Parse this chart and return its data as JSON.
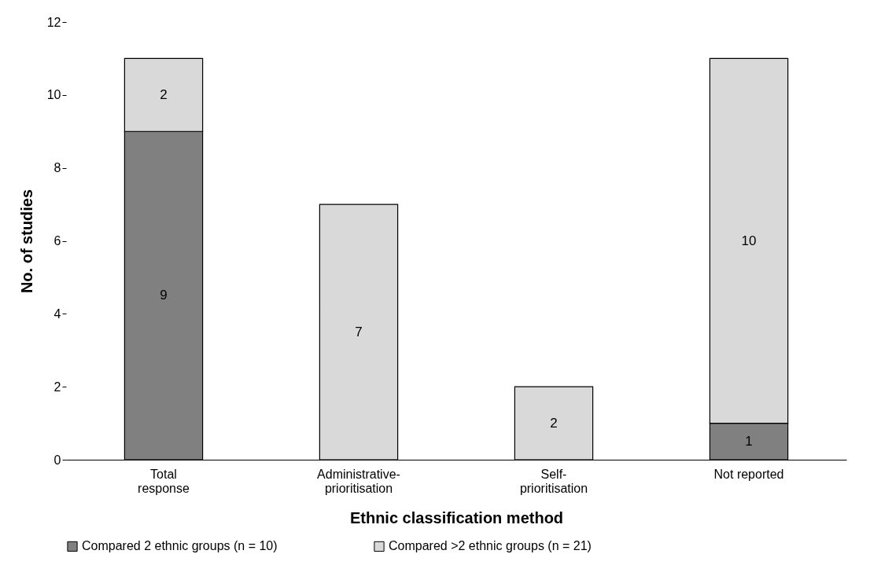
{
  "chart_data": {
    "type": "bar",
    "stacked": true,
    "xlabel": "Ethnic classification method",
    "ylabel": "No. of studies",
    "categories": [
      "Total response",
      "Administrative-prioritisation",
      "Self-prioritisation",
      "Not reported"
    ],
    "series": [
      {
        "name": "Compared 2 ethnic groups (n = 10)",
        "color": "#808080",
        "values": [
          9,
          null,
          null,
          1
        ]
      },
      {
        "name": "Compared >2 ethnic groups (n = 21)",
        "color": "#d9d9d9",
        "values": [
          2,
          7,
          2,
          10
        ]
      }
    ],
    "ylim": [
      0,
      12
    ],
    "yticks": [
      0,
      2,
      4,
      6,
      8,
      10,
      12
    ],
    "grid": false,
    "legend": "bottom",
    "data_labels": true
  }
}
